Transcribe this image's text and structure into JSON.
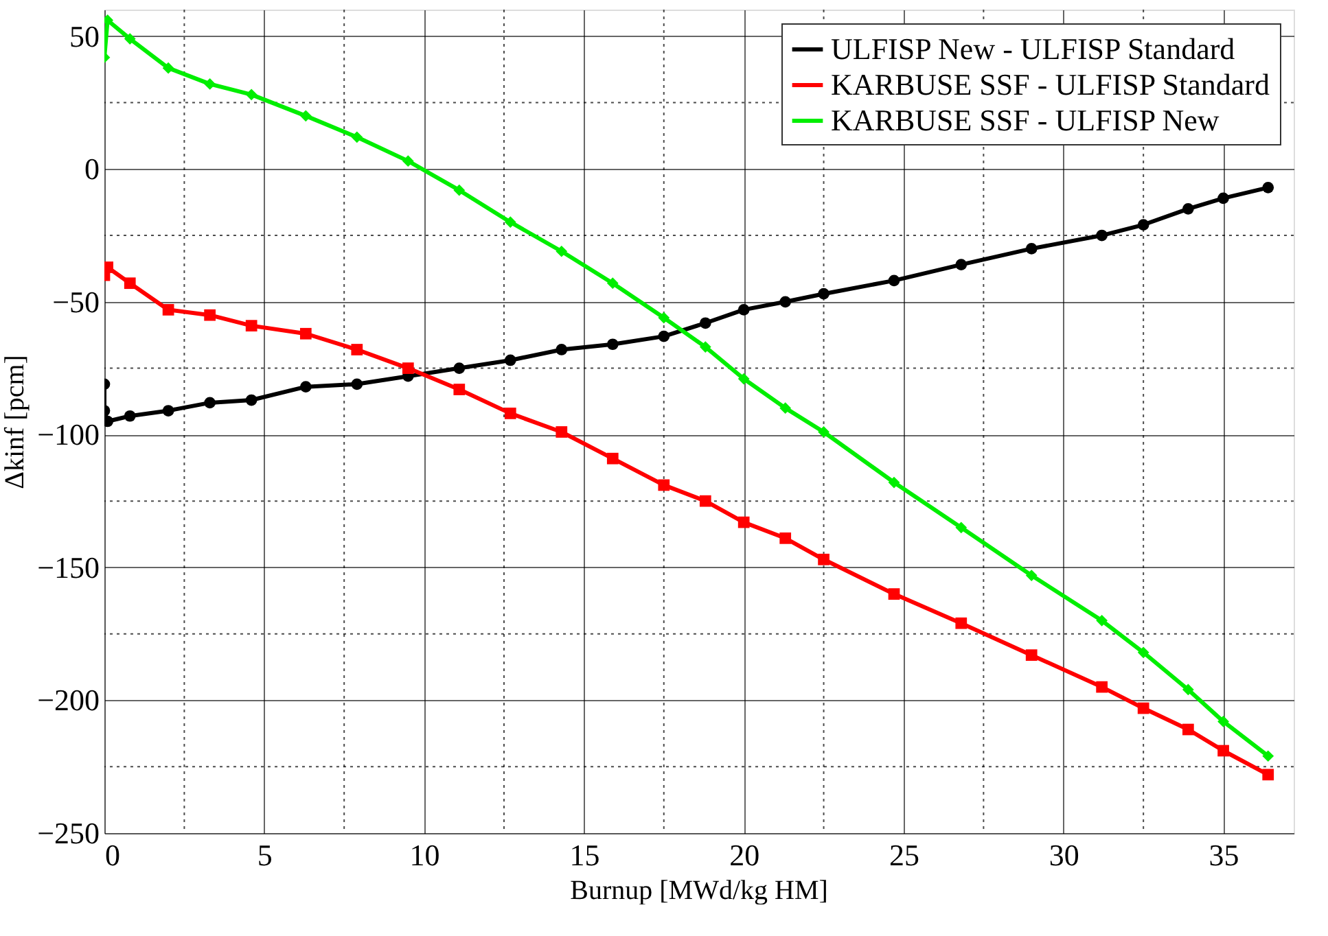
{
  "chart_data": {
    "type": "line",
    "xlabel": "Burnup [MWd/kg HM]",
    "ylabel": "Δkinf [pcm]",
    "xlim": [
      0,
      37.2
    ],
    "ylim": [
      -250,
      60
    ],
    "xticks": [
      0,
      5,
      10,
      15,
      20,
      25,
      30,
      35
    ],
    "yticks": [
      -250,
      -200,
      -150,
      -100,
      -50,
      0,
      50
    ],
    "grid": true,
    "legend": "top right",
    "line_style": "solid",
    "series": [
      {
        "name": "ULFISP New - ULFISP Standard",
        "color": "#000000",
        "marker": "circle",
        "x": [
          0,
          0,
          0.1,
          0.8,
          2.0,
          3.3,
          4.6,
          6.3,
          7.9,
          9.5,
          11.1,
          12.7,
          14.3,
          15.9,
          17.5,
          18.8,
          20.0,
          21.3,
          22.5,
          24.7,
          26.8,
          29.0,
          31.2,
          32.5,
          33.9,
          35.0,
          36.4
        ],
        "values": [
          -81,
          -91,
          -95,
          -93,
          -91,
          -88,
          -87,
          -82,
          -81,
          -78,
          -75,
          -72,
          -68,
          -66,
          -63,
          -58,
          -53,
          -50,
          -47,
          -42,
          -36,
          -30,
          -25,
          -21,
          -15,
          -11,
          -7
        ]
      },
      {
        "name": "KARBUSE SSF - ULFISP Standard",
        "color": "#ff0000",
        "marker": "square",
        "x": [
          0,
          0.1,
          0.8,
          2.0,
          3.3,
          4.6,
          6.3,
          7.9,
          9.5,
          11.1,
          12.7,
          14.3,
          15.9,
          17.5,
          18.8,
          20.0,
          21.3,
          22.5,
          24.7,
          26.8,
          29.0,
          31.2,
          32.5,
          33.9,
          35.0,
          36.4
        ],
        "values": [
          -40,
          -37,
          -43,
          -53,
          -55,
          -59,
          -62,
          -68,
          -75,
          -83,
          -92,
          -99,
          -109,
          -119,
          -125,
          -133,
          -139,
          -147,
          -160,
          -171,
          -183,
          -195,
          -203,
          -211,
          -219,
          -228
        ]
      },
      {
        "name": "KARBUSE SSF - ULFISP New",
        "color": "#00ee00",
        "marker": "diamond",
        "x": [
          0,
          0.1,
          0.8,
          2.0,
          3.3,
          4.6,
          6.3,
          7.9,
          9.5,
          11.1,
          12.7,
          14.3,
          15.9,
          17.5,
          18.8,
          20.0,
          21.3,
          22.5,
          24.7,
          26.8,
          29.0,
          31.2,
          32.5,
          33.9,
          35.0,
          36.4
        ],
        "values": [
          42,
          56,
          49,
          38,
          32,
          28,
          20,
          12,
          3,
          -8,
          -20,
          -31,
          -43,
          -56,
          -67,
          -79,
          -90,
          -99,
          -118,
          -135,
          -153,
          -170,
          -182,
          -196,
          -208,
          -221
        ]
      }
    ]
  }
}
